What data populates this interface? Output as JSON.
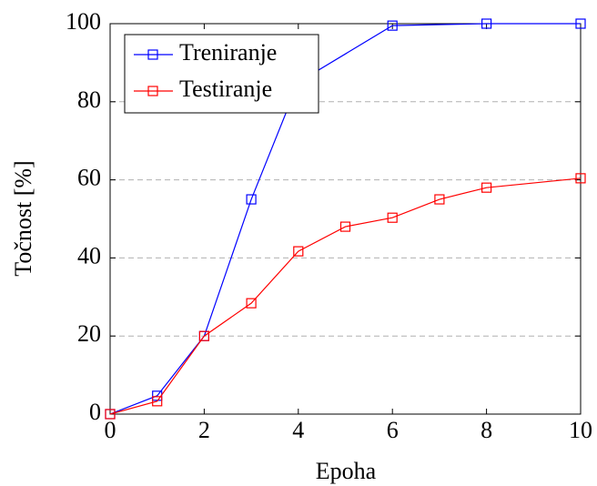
{
  "chart_data": {
    "type": "line",
    "xlabel": "Epoha",
    "ylabel": "Točnost [%]",
    "xlim": [
      0,
      10
    ],
    "ylim": [
      0,
      100
    ],
    "xticks": [
      0,
      2,
      4,
      6,
      8,
      10
    ],
    "yticks": [
      0,
      20,
      40,
      60,
      80,
      100
    ],
    "grid": true,
    "legend": "upper left",
    "series": [
      {
        "name": "Treniranje",
        "color": "#0000ff",
        "x": [
          0,
          1,
          2,
          3,
          4,
          6,
          8,
          10
        ],
        "values": [
          0,
          4.7,
          20,
          55,
          85,
          99.5,
          100,
          100
        ]
      },
      {
        "name": "Testiranje",
        "color": "#ff0000",
        "x": [
          0,
          1,
          2,
          3,
          4,
          5,
          6,
          7,
          8,
          10
        ],
        "values": [
          0,
          3.3,
          20,
          28.4,
          41.7,
          48,
          50.3,
          55,
          58,
          60.4
        ]
      }
    ]
  }
}
